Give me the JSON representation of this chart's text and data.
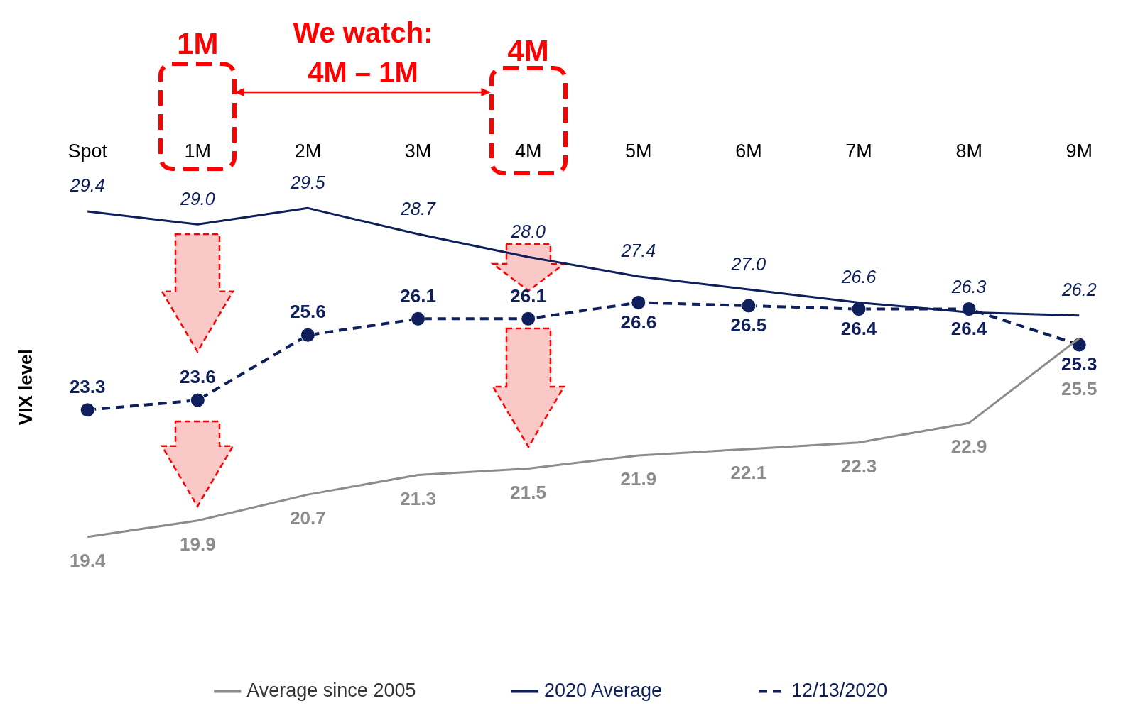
{
  "chart_data": {
    "type": "line",
    "categories": [
      "Spot",
      "1M",
      "2M",
      "3M",
      "4M",
      "5M",
      "6M",
      "7M",
      "8M",
      "9M"
    ],
    "ylabel": "VIX level",
    "legend": "bottom",
    "grid": false,
    "series": [
      {
        "name": "Average since 2005",
        "color": "#8c8c8c",
        "values": [
          19.4,
          19.9,
          20.7,
          21.3,
          21.5,
          21.9,
          22.1,
          22.3,
          22.9,
          25.5
        ],
        "value_labels": [
          "19.4",
          "19.9",
          "20.7",
          "21.3",
          "21.5",
          "21.9",
          "22.1",
          "22.3",
          "22.9",
          "25.5"
        ]
      },
      {
        "name": "2020 Average",
        "color": "#0e1f5b",
        "values": [
          29.4,
          29.0,
          29.5,
          28.7,
          28.0,
          27.4,
          27.0,
          26.6,
          26.3,
          26.2
        ],
        "value_labels": [
          "29.4",
          "29.0",
          "29.5",
          "28.7",
          "28.0",
          "27.4",
          "27.0",
          "26.6",
          "26.3",
          "26.2"
        ]
      },
      {
        "name": "12/13/2020",
        "color": "#0e1f5b",
        "values": [
          23.3,
          23.6,
          25.6,
          26.1,
          26.1,
          26.6,
          26.5,
          26.4,
          26.4,
          25.3
        ],
        "value_labels": [
          "23.3",
          "23.6",
          "25.6",
          "26.1",
          "26.1",
          "26.6",
          "26.5",
          "26.4",
          "26.4",
          "25.3"
        ],
        "line_style": "dashed",
        "marker": "circle"
      }
    ],
    "annotations": [
      "1M",
      "4M",
      "We watch: 4M – 1M"
    ]
  }
}
